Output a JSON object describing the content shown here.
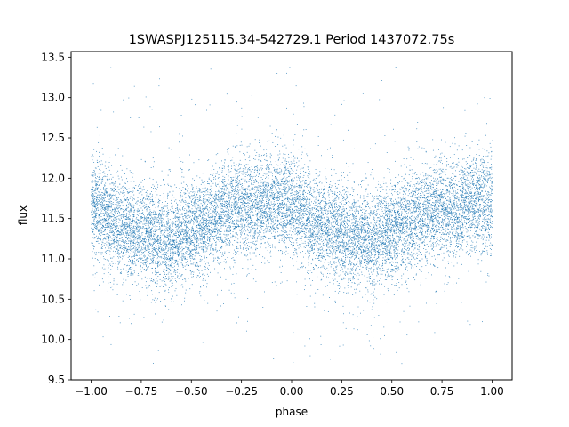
{
  "chart_data": {
    "type": "scatter",
    "title": "1SWASPJ125115.34-542729.1 Period 1437072.75s",
    "xlabel": "phase",
    "ylabel": "flux",
    "xlim": [
      -1.1,
      1.1
    ],
    "ylim": [
      9.5,
      13.57
    ],
    "x_ticks": [
      -1.0,
      -0.75,
      -0.5,
      -0.25,
      0.0,
      0.25,
      0.5,
      0.75,
      1.0
    ],
    "x_tick_labels": [
      "−1.00",
      "−0.75",
      "−0.50",
      "−0.25",
      "0.00",
      "0.25",
      "0.50",
      "0.75",
      "1.00"
    ],
    "y_ticks": [
      9.5,
      10.0,
      10.5,
      11.0,
      11.5,
      12.0,
      12.5,
      13.0,
      13.5
    ],
    "y_tick_labels": [
      "9.5",
      "10.0",
      "10.5",
      "11.0",
      "11.5",
      "12.0",
      "12.5",
      "13.0",
      "13.5"
    ],
    "grid": false,
    "legend": "none",
    "marker_color": "#1f77b4",
    "trend_phase": [
      0.0,
      0.05,
      0.1,
      0.15,
      0.2,
      0.25,
      0.3,
      0.35,
      0.4,
      0.45,
      0.5,
      0.55,
      0.6,
      0.65,
      0.7,
      0.75,
      0.8,
      0.85,
      0.9,
      0.95,
      1.0
    ],
    "trend_flux": [
      11.65,
      11.6,
      11.45,
      11.4,
      11.4,
      11.35,
      11.3,
      11.25,
      11.2,
      11.3,
      11.35,
      11.4,
      11.45,
      11.55,
      11.6,
      11.65,
      11.6,
      11.65,
      11.7,
      11.68,
      11.65
    ],
    "scatter_sigma": 0.3,
    "n_points": 14000
  }
}
